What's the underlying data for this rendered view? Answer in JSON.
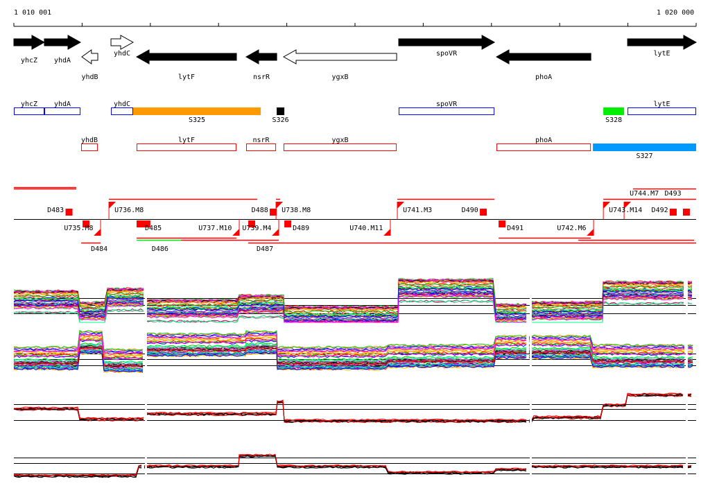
{
  "axis": {
    "start_label": "1 010 001",
    "end_label": "1 020 000",
    "start": 1010001,
    "end": 1020000
  },
  "genes": [
    {
      "name": "yhcZ",
      "start": 1010001,
      "end": 1010448,
      "strand": "+",
      "fill": "black",
      "row": 1
    },
    {
      "name": "yhdA",
      "start": 1010448,
      "end": 1010977,
      "strand": "+",
      "fill": "black",
      "row": 1
    },
    {
      "name": "yhdB",
      "start": 1010997,
      "end": 1011231,
      "strand": "-",
      "fill": "white",
      "row": 2
    },
    {
      "name": "yhdC",
      "start": 1011424,
      "end": 1011749,
      "strand": "+",
      "fill": "white",
      "row": 1
    },
    {
      "name": "lytF",
      "start": 1011800,
      "end": 1013263,
      "strand": "-",
      "fill": "black",
      "row": 2
    },
    {
      "name": "nsrR",
      "start": 1013405,
      "end": 1013853,
      "strand": "-",
      "fill": "black",
      "row": 2
    },
    {
      "name": "ygxB",
      "start": 1013954,
      "end": 1015611,
      "strand": "-",
      "fill": "white",
      "row": 2
    },
    {
      "name": "spoVR",
      "start": 1015641,
      "end": 1017044,
      "strand": "+",
      "fill": "black",
      "row": 1
    },
    {
      "name": "phoA",
      "start": 1017074,
      "end": 1018457,
      "strand": "-",
      "fill": "black",
      "row": 2
    },
    {
      "name": "lytE",
      "start": 1018995,
      "end": 1020000,
      "strand": "+",
      "fill": "black",
      "row": 1
    }
  ],
  "annotations": [
    {
      "name": "yhcZ",
      "start": 1010001,
      "end": 1010448,
      "row": 1,
      "style": "outline",
      "color": "#0000ff"
    },
    {
      "name": "yhdA",
      "start": 1010448,
      "end": 1010977,
      "row": 1,
      "style": "outline",
      "color": "#0000ff"
    },
    {
      "name": "yhdC",
      "start": 1011424,
      "end": 1011749,
      "row": 1,
      "style": "outline",
      "color": "#0000ff"
    },
    {
      "name": "S325",
      "start": 1011749,
      "end": 1013619,
      "row": 1,
      "style": "filled",
      "color": "#ff9900"
    },
    {
      "name": "S326",
      "start": 1013853,
      "end": 1013965,
      "row": 1,
      "style": "filled",
      "color": "#000000"
    },
    {
      "name": "spoVR",
      "start": 1015641,
      "end": 1017044,
      "row": 1,
      "style": "outline",
      "color": "#0000ff"
    },
    {
      "name": "S328",
      "start": 1018640,
      "end": 1018944,
      "row": 1,
      "style": "filled",
      "color": "#00ee00"
    },
    {
      "name": "lytE",
      "start": 1018995,
      "end": 1020000,
      "row": 1,
      "style": "outline",
      "color": "#0000ff"
    },
    {
      "name": "yhdB",
      "start": 1010987,
      "end": 1011231,
      "row": 2,
      "style": "outline",
      "color": "#ff0000"
    },
    {
      "name": "lytF",
      "start": 1011800,
      "end": 1013263,
      "row": 2,
      "style": "outline",
      "color": "#ff0000"
    },
    {
      "name": "nsrR",
      "start": 1013405,
      "end": 1013843,
      "row": 2,
      "style": "outline",
      "color": "#ff0000"
    },
    {
      "name": "ygxB",
      "start": 1013954,
      "end": 1015611,
      "row": 2,
      "style": "outline",
      "color": "#ff0000"
    },
    {
      "name": "phoA",
      "start": 1017074,
      "end": 1018457,
      "row": 2,
      "style": "outline",
      "color": "#ff0000"
    },
    {
      "name": "S327",
      "start": 1018487,
      "end": 1020000,
      "row": 2,
      "style": "filled",
      "color": "#0099ff"
    }
  ],
  "features": [
    {
      "label": "D483",
      "pos": 1010860,
      "type": "D",
      "side": "up"
    },
    {
      "label": "U736.M8",
      "pos": 1011394,
      "type": "U",
      "side": "up"
    },
    {
      "label": "D488",
      "pos": 1013853,
      "type": "D",
      "side": "up"
    },
    {
      "label": "U738.M8",
      "pos": 1013843,
      "type": "U",
      "side": "up"
    },
    {
      "label": "U741.M3",
      "pos": 1015621,
      "type": "U",
      "side": "up"
    },
    {
      "label": "D490",
      "pos": 1016932,
      "type": "D",
      "side": "up"
    },
    {
      "label": "U743.M14",
      "pos": 1018640,
      "type": "U",
      "side": "up"
    },
    {
      "label": "U744.M7",
      "pos": 1018944,
      "type": "U",
      "side": "up"
    },
    {
      "label": "D492",
      "pos": 1019715,
      "type": "D",
      "side": "up"
    },
    {
      "label": "D493",
      "pos": 1019908,
      "type": "D",
      "side": "up"
    },
    {
      "label": "U735.M8",
      "pos": 1011272,
      "type": "U",
      "side": "down"
    },
    {
      "label": "D484",
      "pos": 1011008,
      "type": "D",
      "side": "down"
    },
    {
      "label": "D485",
      "pos": 1011800,
      "type": "D",
      "side": "down"
    },
    {
      "label": "D486",
      "pos": 1011900,
      "type": "D",
      "side": "down"
    },
    {
      "label": "U737.M10",
      "pos": 1013304,
      "type": "U",
      "side": "down"
    },
    {
      "label": "D487",
      "pos": 1013436,
      "type": "D",
      "side": "down"
    },
    {
      "label": "U739.M4",
      "pos": 1013883,
      "type": "U",
      "side": "down"
    },
    {
      "label": "D489",
      "pos": 1013965,
      "type": "D",
      "side": "down"
    },
    {
      "label": "U740.M11",
      "pos": 1015519,
      "type": "U",
      "side": "down"
    },
    {
      "label": "D491",
      "pos": 1017105,
      "type": "D",
      "side": "down"
    },
    {
      "label": "U742.M6",
      "pos": 1018497,
      "type": "U",
      "side": "down"
    }
  ],
  "transcripts": [
    {
      "start": 1010001,
      "end": 1010916,
      "row": 0,
      "color": "#ff0000"
    },
    {
      "start": 1010001,
      "end": 1010916,
      "row": 1,
      "color": "#ff0000"
    },
    {
      "start": 1011394,
      "end": 1013568,
      "row": 2,
      "color": "#ff0000"
    },
    {
      "start": 1013843,
      "end": 1013904,
      "row": 2,
      "color": "#ff0000"
    },
    {
      "start": 1015621,
      "end": 1017044,
      "row": 2,
      "color": "#ff0000"
    },
    {
      "start": 1018640,
      "end": 1020000,
      "row": 2,
      "color": "#ff0000"
    },
    {
      "start": 1019075,
      "end": 1020000,
      "row": 1,
      "color": "#ff0000"
    },
    {
      "start": 1010987,
      "end": 1011272,
      "row": 3,
      "color": "#ff0000"
    },
    {
      "start": 1013436,
      "end": 1020000,
      "row": 3,
      "color": "#ff0000"
    },
    {
      "start": 1011800,
      "end": 1012450,
      "row": 4,
      "color": "#00ee00"
    },
    {
      "start": 1012450,
      "end": 1013883,
      "row": 4,
      "color": "#ff0000"
    },
    {
      "start": 1018274,
      "end": 1019970,
      "row": 4,
      "color": "#ff0000"
    },
    {
      "start": 1011800,
      "end": 1013263,
      "row": 5,
      "color": "#ff0000"
    },
    {
      "start": 1017105,
      "end": 1018457,
      "row": 5,
      "color": "#ff0000"
    }
  ]
}
